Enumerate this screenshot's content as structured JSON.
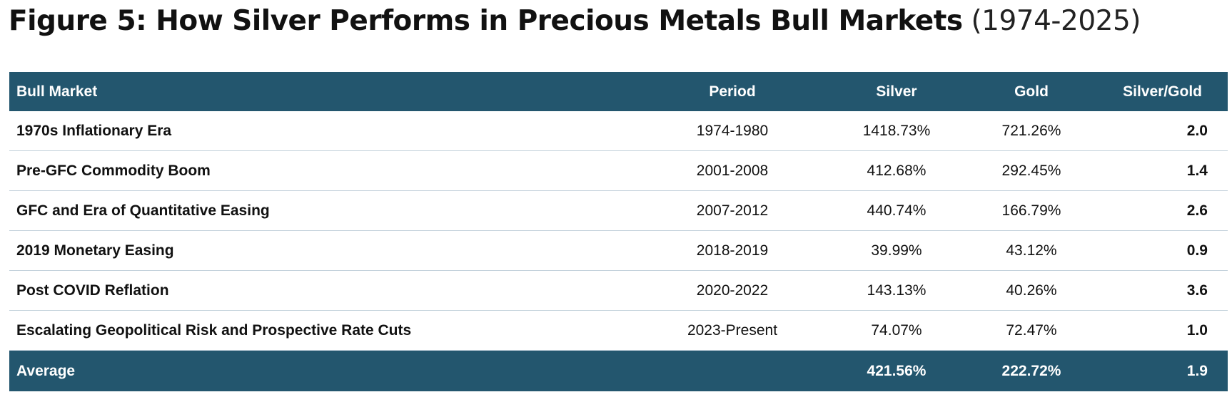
{
  "title": {
    "main": "Figure 5: How Silver Performs in Precious Metals Bull Markets",
    "years": "(1974-2025)"
  },
  "chart_data": {
    "type": "table",
    "columns": [
      "Bull Market",
      "Period",
      "Silver",
      "Gold",
      "Silver/Gold"
    ],
    "rows": [
      [
        "1970s Inflationary Era",
        "1974-1980",
        "1418.73%",
        "721.26%",
        "2.0"
      ],
      [
        "Pre-GFC Commodity Boom",
        "2001-2008",
        "412.68%",
        "292.45%",
        "1.4"
      ],
      [
        "GFC and Era of Quantitative Easing",
        "2007-2012",
        "440.74%",
        "166.79%",
        "2.6"
      ],
      [
        "2019 Monetary Easing",
        "2018-2019",
        "39.99%",
        "43.12%",
        "0.9"
      ],
      [
        "Post COVID Reflation",
        "2020-2022",
        "143.13%",
        "40.26%",
        "3.6"
      ],
      [
        "Escalating Geopolitical Risk and Prospective Rate Cuts",
        "2023-Present",
        "74.07%",
        "72.47%",
        "1.0"
      ]
    ],
    "footer": [
      "Average",
      "",
      "421.56%",
      "222.72%",
      "1.9"
    ],
    "colors": {
      "header_bg": "#23566e",
      "header_text": "#ffffff",
      "row_divider": "#c4d2dc"
    }
  }
}
